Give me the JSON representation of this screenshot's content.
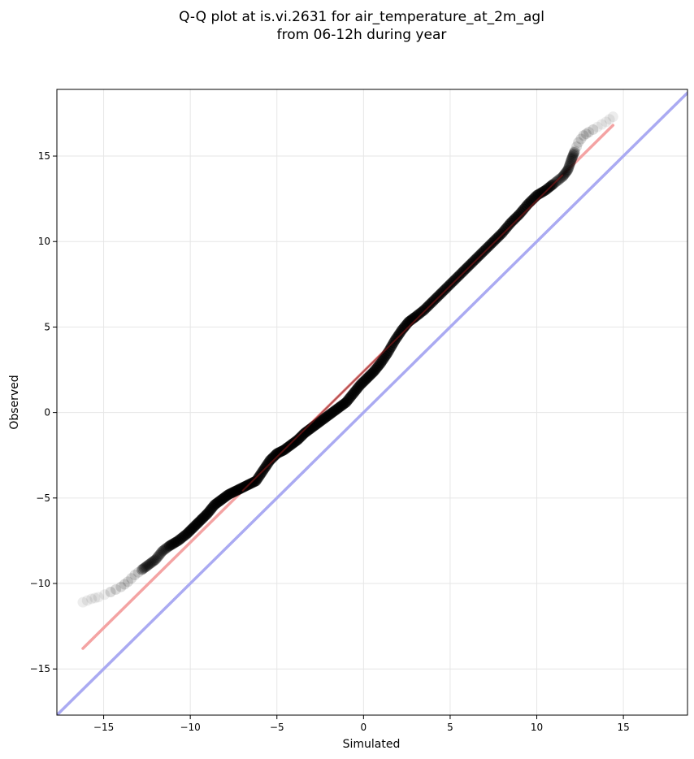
{
  "chart_data": {
    "type": "scatter",
    "title": "Q-Q plot at is.vi.2631 for air_temperature_at_2m_agl",
    "subtitle": "from 06-12h during year",
    "xlabel": "Simulated",
    "ylabel": "Observed",
    "xlim": [
      -17.7,
      18.7
    ],
    "ylim": [
      -17.7,
      18.9
    ],
    "xticks": [
      -15,
      -10,
      -5,
      0,
      5,
      10,
      15
    ],
    "yticks": [
      -15,
      -10,
      -5,
      0,
      5,
      10,
      15
    ],
    "xtick_labels": [
      "−15",
      "−10",
      "−5",
      "0",
      "5",
      "10",
      "15"
    ],
    "ytick_labels": [
      "−15",
      "−10",
      "−5",
      "0",
      "5",
      "10",
      "15"
    ],
    "grid": true,
    "legend": "none",
    "series": [
      {
        "kind": "scatter",
        "color": "#000000",
        "points": [
          [
            -16.2,
            -11.1
          ],
          [
            -15.7,
            -10.9
          ],
          [
            -15.3,
            -10.8
          ],
          [
            -14.6,
            -10.5
          ],
          [
            -14.0,
            -10.2
          ],
          [
            -13.6,
            -9.9
          ],
          [
            -13.2,
            -9.5
          ],
          [
            -12.8,
            -9.2
          ],
          [
            -12.4,
            -8.9
          ],
          [
            -12.0,
            -8.6
          ],
          [
            -11.6,
            -8.1
          ],
          [
            -11.2,
            -7.8
          ],
          [
            -10.7,
            -7.5
          ],
          [
            -10.2,
            -7.1
          ],
          [
            -9.8,
            -6.7
          ],
          [
            -9.4,
            -6.3
          ],
          [
            -9.0,
            -5.9
          ],
          [
            -8.6,
            -5.4
          ],
          [
            -8.2,
            -5.1
          ],
          [
            -7.8,
            -4.8
          ],
          [
            -7.4,
            -4.6
          ],
          [
            -7.0,
            -4.4
          ],
          [
            -6.6,
            -4.2
          ],
          [
            -6.2,
            -4.0
          ],
          [
            -5.8,
            -3.4
          ],
          [
            -5.4,
            -2.8
          ],
          [
            -5.0,
            -2.4
          ],
          [
            -4.6,
            -2.2
          ],
          [
            -4.2,
            -1.9
          ],
          [
            -3.8,
            -1.6
          ],
          [
            -3.4,
            -1.2
          ],
          [
            -3.0,
            -0.9
          ],
          [
            -2.6,
            -0.6
          ],
          [
            -2.2,
            -0.3
          ],
          [
            -1.8,
            0.0
          ],
          [
            -1.4,
            0.3
          ],
          [
            -1.0,
            0.6
          ],
          [
            -0.6,
            1.1
          ],
          [
            -0.2,
            1.6
          ],
          [
            0.2,
            2.0
          ],
          [
            0.6,
            2.4
          ],
          [
            1.0,
            2.9
          ],
          [
            1.4,
            3.5
          ],
          [
            1.8,
            4.2
          ],
          [
            2.2,
            4.8
          ],
          [
            2.6,
            5.3
          ],
          [
            3.0,
            5.6
          ],
          [
            3.5,
            6.0
          ],
          [
            4.0,
            6.5
          ],
          [
            4.5,
            7.0
          ],
          [
            5.0,
            7.5
          ],
          [
            5.5,
            8.0
          ],
          [
            6.0,
            8.5
          ],
          [
            6.5,
            9.0
          ],
          [
            7.0,
            9.5
          ],
          [
            7.5,
            10.0
          ],
          [
            8.0,
            10.5
          ],
          [
            8.5,
            11.1
          ],
          [
            9.0,
            11.6
          ],
          [
            9.5,
            12.2
          ],
          [
            10.0,
            12.7
          ],
          [
            10.5,
            13.0
          ],
          [
            11.0,
            13.4
          ],
          [
            11.5,
            13.8
          ],
          [
            11.8,
            14.2
          ],
          [
            12.0,
            14.8
          ],
          [
            12.2,
            15.3
          ],
          [
            12.4,
            15.8
          ],
          [
            12.7,
            16.2
          ],
          [
            13.0,
            16.4
          ],
          [
            13.5,
            16.7
          ],
          [
            14.0,
            17.0
          ],
          [
            14.4,
            17.3
          ]
        ]
      },
      {
        "kind": "line",
        "color": "#f4a3a3",
        "x": [
          -16.2,
          14.4
        ],
        "y": [
          -13.8,
          16.8
        ]
      },
      {
        "kind": "line",
        "color": "#aaaaf2",
        "x": [
          -17.7,
          18.7
        ],
        "y": [
          -17.7,
          18.7
        ]
      }
    ]
  }
}
